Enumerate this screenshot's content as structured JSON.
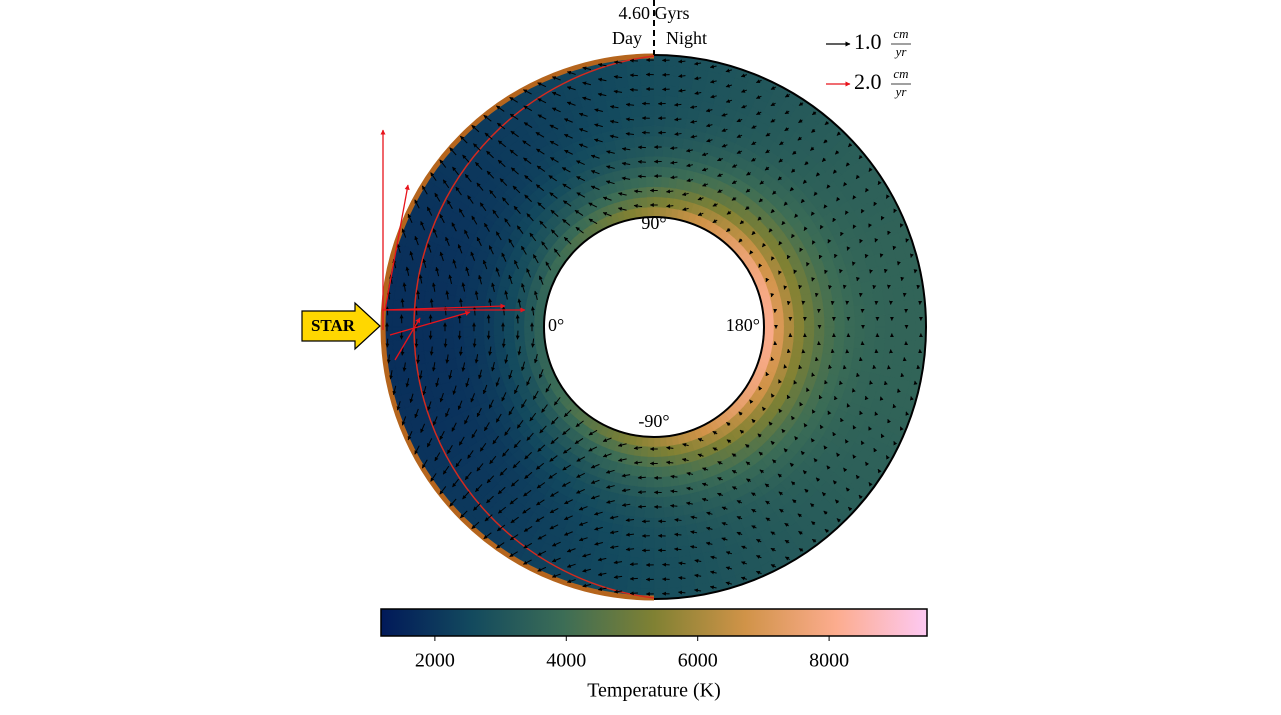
{
  "chart_data": {
    "type": "polar_heatmap",
    "time_label": "4.60 Gyrs",
    "side_labels": [
      "Day",
      "Night"
    ],
    "star_label": "STAR",
    "angle_ticks": [
      {
        "value": 90,
        "label": "90°"
      },
      {
        "value": 0,
        "label": "0°"
      },
      {
        "value": 180,
        "label": "180°"
      },
      {
        "value": -90,
        "label": "-90°"
      }
    ],
    "vector_legend": [
      {
        "label": "1.0",
        "numerator": "cm",
        "denominator": "yr",
        "color": "#000000"
      },
      {
        "label": "2.0",
        "numerator": "cm",
        "denominator": "yr",
        "color": "#e8141c"
      }
    ],
    "colorbar": {
      "label": "Temperature (K)",
      "clim": [
        1180,
        9490
      ],
      "ticks": [
        2000,
        4000,
        6000,
        8000
      ],
      "colormap": [
        "#011959",
        "#134a5e",
        "#3c6d56",
        "#808133",
        "#d09348",
        "#fcac8e",
        "#fdc9f2"
      ]
    }
  }
}
